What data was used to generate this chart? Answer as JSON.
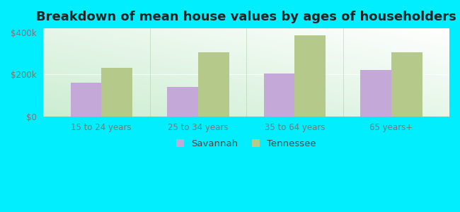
{
  "title": "Breakdown of mean house values by ages of householders",
  "categories": [
    "15 to 24 years",
    "25 to 34 years",
    "35 to 64 years",
    "65 years+"
  ],
  "savannah_values": [
    160000,
    140000,
    205000,
    220000
  ],
  "tennessee_values": [
    230000,
    305000,
    385000,
    305000
  ],
  "savannah_color": "#c4a8d8",
  "tennessee_color": "#b5c98a",
  "background_color": "#00eeff",
  "ylabel_ticks": [
    0,
    200000,
    400000
  ],
  "ylabel_labels": [
    "$0",
    "$200k",
    "$400k"
  ],
  "bar_width": 0.32,
  "legend_savannah": "Savannah",
  "legend_tennessee": "Tennessee",
  "title_fontsize": 13,
  "tick_fontsize": 8.5,
  "legend_fontsize": 9.5,
  "ylim": 420000
}
